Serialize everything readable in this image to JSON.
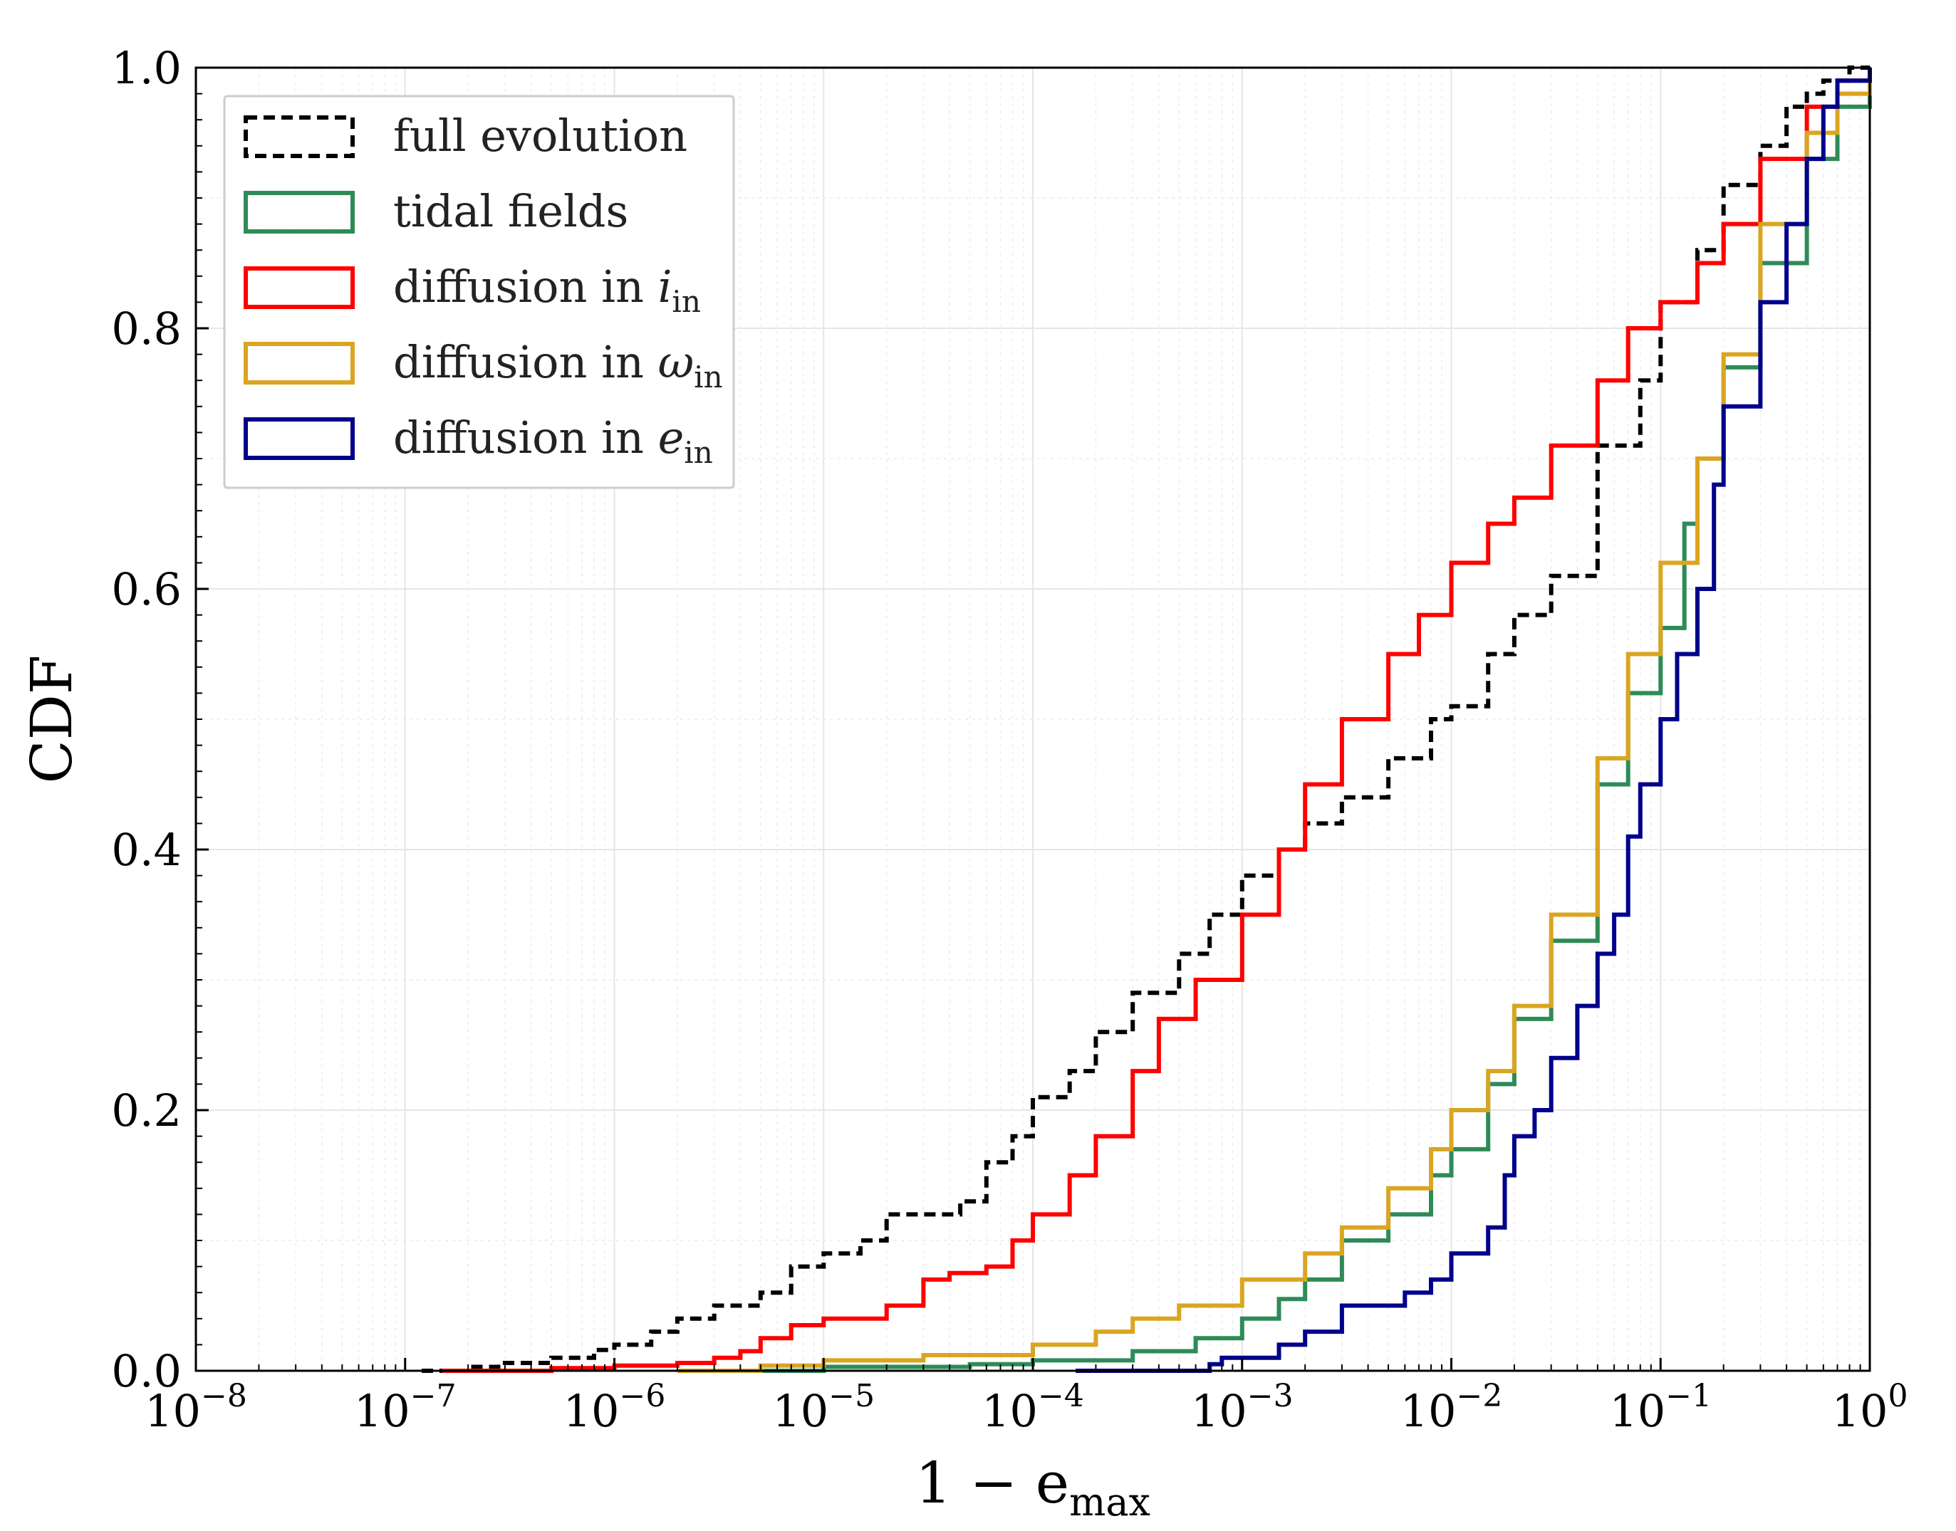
{
  "chart_data": {
    "type": "line",
    "title": "",
    "xlabel": "1 − e",
    "xlabel_sub": "max",
    "ylabel": "CDF",
    "xscale": "log",
    "xlim": [
      1e-08,
      1
    ],
    "ylim": [
      0,
      1
    ],
    "grid": true,
    "legend_position": "top-left",
    "x_ticks": [
      {
        "base": "10",
        "exp": "−8"
      },
      {
        "base": "10",
        "exp": "−7"
      },
      {
        "base": "10",
        "exp": "−6"
      },
      {
        "base": "10",
        "exp": "−5"
      },
      {
        "base": "10",
        "exp": "−4"
      },
      {
        "base": "10",
        "exp": "−3"
      },
      {
        "base": "10",
        "exp": "−2"
      },
      {
        "base": "10",
        "exp": "−1"
      },
      {
        "base": "10",
        "exp": "0"
      }
    ],
    "y_ticks": [
      "0.0",
      "0.2",
      "0.4",
      "0.6",
      "0.8",
      "1.0"
    ],
    "series": [
      {
        "name": "full evolution",
        "name_sub": "",
        "color": "#000000",
        "dashed": true,
        "x": [
          1.2e-07,
          2e-07,
          3e-07,
          5e-07,
          8e-07,
          1e-06,
          1.5e-06,
          2e-06,
          3e-06,
          5e-06,
          7e-06,
          1e-05,
          1.5e-05,
          2e-05,
          3e-05,
          4.5e-05,
          6e-05,
          8e-05,
          0.0001,
          0.00015,
          0.0002,
          0.0003,
          0.0005,
          0.0007,
          0.001,
          0.0015,
          0.002,
          0.003,
          0.005,
          0.008,
          0.01,
          0.015,
          0.02,
          0.03,
          0.05,
          0.08,
          0.1,
          0.15,
          0.2,
          0.3,
          0.4,
          0.5,
          0.6,
          0.8,
          1.0
        ],
        "y": [
          0.0,
          0.003,
          0.006,
          0.01,
          0.016,
          0.02,
          0.03,
          0.04,
          0.05,
          0.06,
          0.08,
          0.09,
          0.1,
          0.12,
          0.12,
          0.13,
          0.16,
          0.18,
          0.21,
          0.23,
          0.26,
          0.29,
          0.32,
          0.35,
          0.38,
          0.4,
          0.42,
          0.44,
          0.47,
          0.5,
          0.51,
          0.55,
          0.58,
          0.61,
          0.71,
          0.76,
          0.82,
          0.86,
          0.91,
          0.94,
          0.97,
          0.98,
          0.99,
          1.0,
          1.0
        ]
      },
      {
        "name": "tidal fields",
        "name_sub": "",
        "color": "#2e8b57",
        "dashed": false,
        "x": [
          3e-06,
          1e-05,
          5e-05,
          0.0001,
          0.0003,
          0.0006,
          0.001,
          0.0015,
          0.002,
          0.003,
          0.005,
          0.008,
          0.01,
          0.015,
          0.02,
          0.03,
          0.05,
          0.07,
          0.1,
          0.13,
          0.15,
          0.2,
          0.3,
          0.5,
          0.7,
          1.0
        ],
        "y": [
          0.0,
          0.003,
          0.005,
          0.008,
          0.015,
          0.025,
          0.04,
          0.055,
          0.07,
          0.1,
          0.12,
          0.15,
          0.17,
          0.22,
          0.27,
          0.33,
          0.45,
          0.52,
          0.57,
          0.65,
          0.7,
          0.77,
          0.85,
          0.93,
          0.97,
          1.0
        ]
      },
      {
        "name": "diffusion in ",
        "name_sub": "in",
        "name_sym": "i",
        "color": "#ff0000",
        "dashed": false,
        "x": [
          1.5e-07,
          5e-07,
          1e-06,
          2e-06,
          3e-06,
          4e-06,
          5e-06,
          7e-06,
          1e-05,
          2e-05,
          3e-05,
          4e-05,
          6e-05,
          8e-05,
          0.0001,
          0.00015,
          0.0002,
          0.0003,
          0.0004,
          0.0006,
          0.001,
          0.0015,
          0.002,
          0.003,
          0.005,
          0.007,
          0.01,
          0.015,
          0.02,
          0.03,
          0.05,
          0.07,
          0.1,
          0.15,
          0.2,
          0.3,
          0.5,
          0.7,
          1.0
        ],
        "y": [
          0.0,
          0.002,
          0.004,
          0.006,
          0.01,
          0.015,
          0.025,
          0.035,
          0.04,
          0.05,
          0.07,
          0.075,
          0.08,
          0.1,
          0.12,
          0.15,
          0.18,
          0.23,
          0.27,
          0.3,
          0.35,
          0.4,
          0.45,
          0.5,
          0.55,
          0.58,
          0.62,
          0.65,
          0.67,
          0.71,
          0.76,
          0.8,
          0.82,
          0.85,
          0.88,
          0.93,
          0.97,
          0.99,
          1.0
        ]
      },
      {
        "name": "diffusion in ",
        "name_sub": "in",
        "name_sym": "ω",
        "color": "#daa520",
        "dashed": false,
        "x": [
          2e-06,
          5e-06,
          1e-05,
          3e-05,
          0.0001,
          0.0002,
          0.0003,
          0.0005,
          0.001,
          0.002,
          0.003,
          0.005,
          0.008,
          0.01,
          0.015,
          0.02,
          0.03,
          0.05,
          0.07,
          0.1,
          0.15,
          0.2,
          0.3,
          0.5,
          0.7,
          1.0
        ],
        "y": [
          0.0,
          0.004,
          0.008,
          0.012,
          0.02,
          0.03,
          0.04,
          0.05,
          0.07,
          0.09,
          0.11,
          0.14,
          0.17,
          0.2,
          0.23,
          0.28,
          0.35,
          0.47,
          0.55,
          0.62,
          0.7,
          0.78,
          0.88,
          0.95,
          0.98,
          1.0
        ]
      },
      {
        "name": "diffusion in ",
        "name_sub": "in",
        "name_sym": "e",
        "color": "#00008b",
        "dashed": false,
        "x": [
          0.00016,
          0.0007,
          0.0008,
          0.0015,
          0.002,
          0.003,
          0.006,
          0.008,
          0.01,
          0.015,
          0.018,
          0.02,
          0.025,
          0.03,
          0.04,
          0.05,
          0.06,
          0.07,
          0.08,
          0.1,
          0.12,
          0.15,
          0.18,
          0.2,
          0.3,
          0.4,
          0.5,
          0.6,
          0.7,
          1.0
        ],
        "y": [
          0.0,
          0.005,
          0.01,
          0.02,
          0.03,
          0.05,
          0.06,
          0.07,
          0.09,
          0.11,
          0.15,
          0.18,
          0.2,
          0.24,
          0.28,
          0.32,
          0.35,
          0.41,
          0.45,
          0.5,
          0.55,
          0.6,
          0.68,
          0.74,
          0.82,
          0.88,
          0.93,
          0.97,
          0.99,
          1.0
        ]
      }
    ]
  }
}
